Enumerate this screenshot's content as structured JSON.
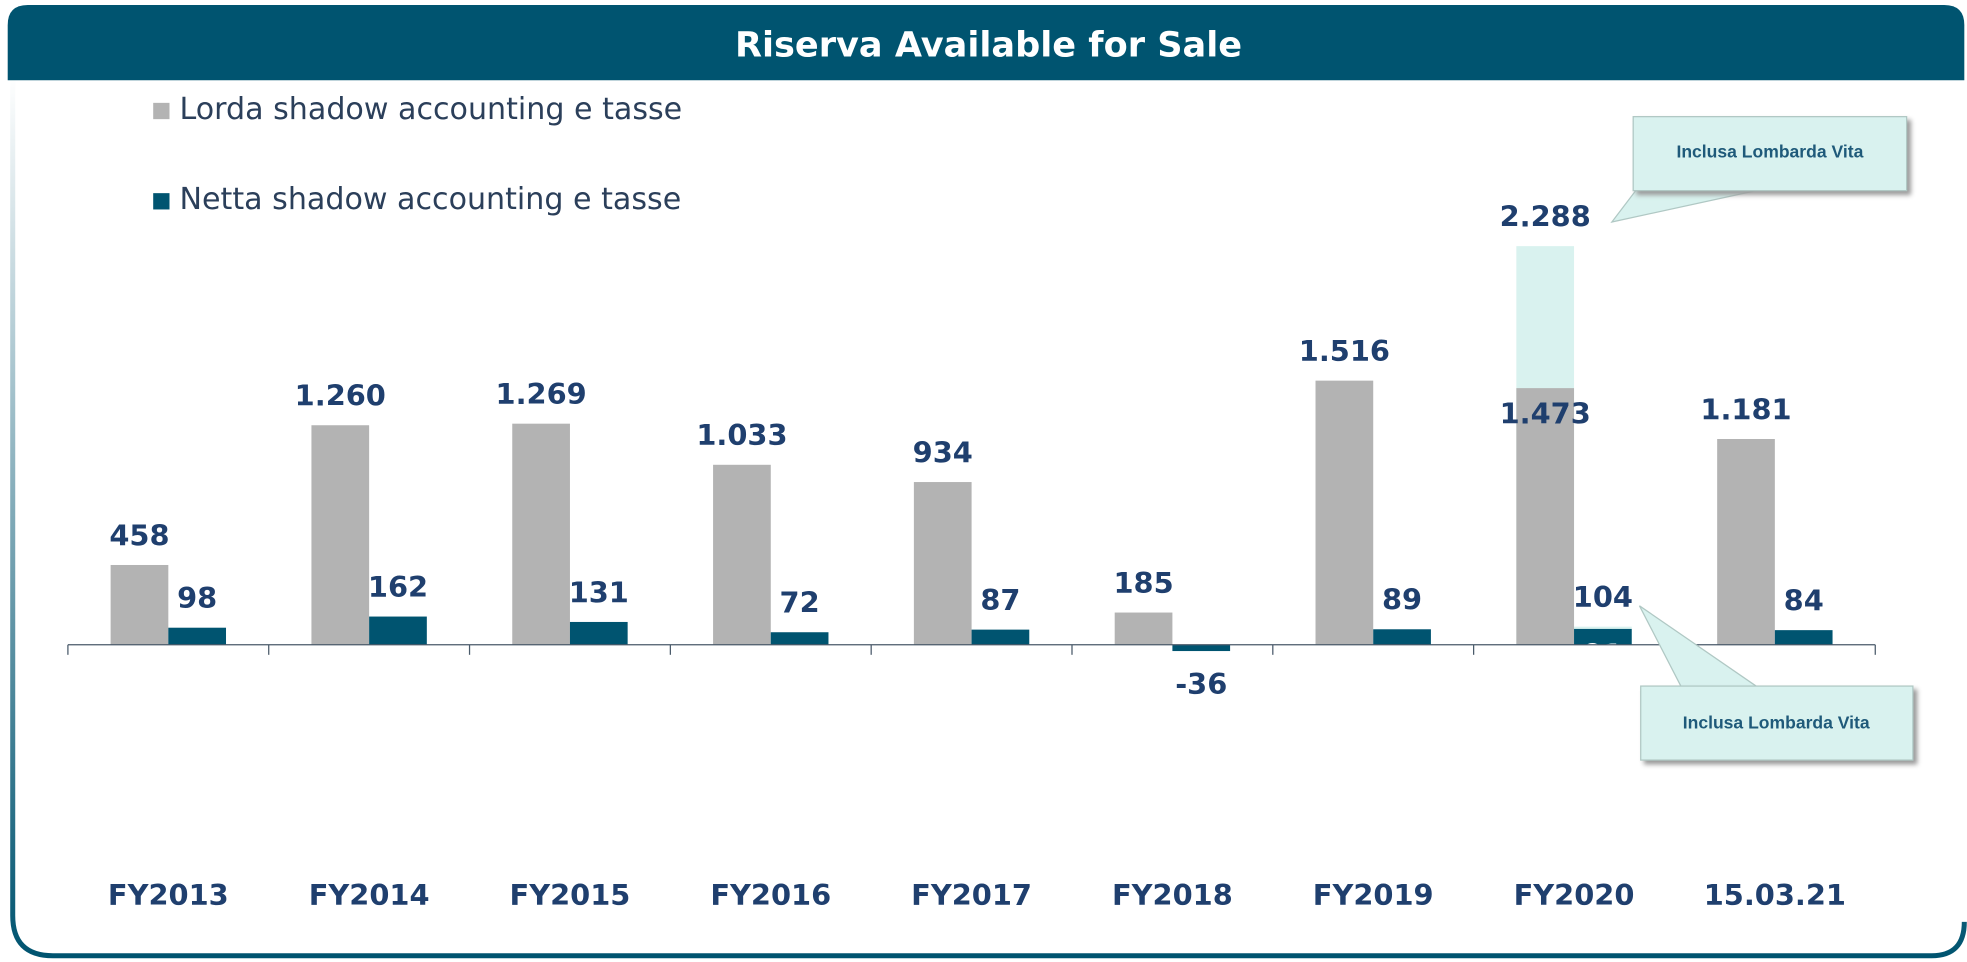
{
  "chart_data": {
    "type": "bar",
    "title": "Riserva Available for Sale",
    "categories": [
      "FY2013",
      "FY2014",
      "FY2015",
      "FY2016",
      "FY2017",
      "FY2018",
      "FY2019",
      "FY2020",
      "15.03.21"
    ],
    "ylim": [
      -1000,
      2700
    ],
    "series": [
      {
        "name": "Lorda shadow accounting e tasse",
        "color": "#b3b3b3",
        "values": [
          458,
          1260,
          1269,
          1033,
          934,
          185,
          1516,
          1473,
          1181
        ],
        "value_labels": [
          "458",
          "1.260",
          "1.269",
          "1.033",
          "934",
          "185",
          "1.516",
          "1.473",
          "1.181"
        ]
      },
      {
        "name": "Netta shadow accounting e tasse",
        "color": "#005470",
        "values": [
          98,
          162,
          131,
          72,
          87,
          -36,
          89,
          91,
          84
        ],
        "value_labels": [
          "98",
          "162",
          "131",
          "72",
          "87",
          "-36",
          "89",
          "91",
          "84"
        ]
      },
      {
        "name": "Inclusa Lombarda Vita",
        "color": "#d9f2ef",
        "overlay_of": 0,
        "values": [
          null,
          null,
          null,
          null,
          null,
          null,
          null,
          2288,
          null
        ],
        "value_labels": [
          null,
          null,
          null,
          null,
          null,
          null,
          null,
          "2.288",
          null
        ]
      },
      {
        "name": "Inclusa Lombarda Vita",
        "color": "#d9f2ef",
        "overlay_of": 1,
        "values": [
          null,
          null,
          null,
          null,
          null,
          null,
          null,
          104,
          null
        ],
        "value_labels": [
          null,
          null,
          null,
          null,
          null,
          null,
          null,
          "104",
          null
        ]
      }
    ]
  }
}
